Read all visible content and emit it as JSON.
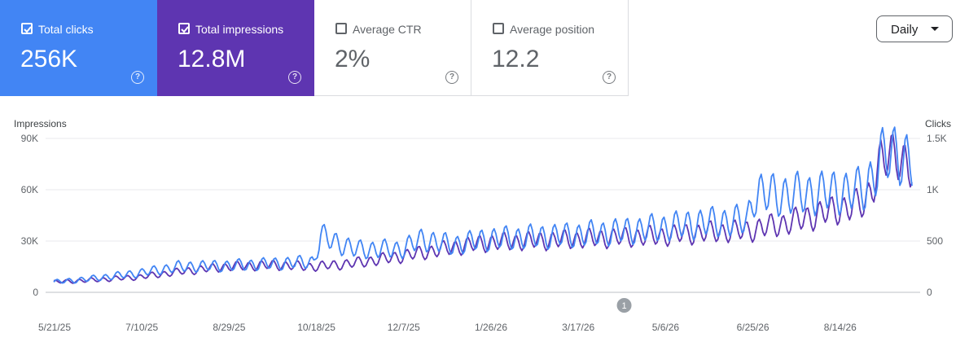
{
  "metrics": [
    {
      "label": "Total clicks",
      "value": "256K",
      "checked": true,
      "theme": "active-blue"
    },
    {
      "label": "Total impressions",
      "value": "12.8M",
      "checked": true,
      "theme": "active-purple"
    },
    {
      "label": "Average CTR",
      "value": "2%",
      "checked": false,
      "theme": ""
    },
    {
      "label": "Average position",
      "value": "12.2",
      "checked": false,
      "theme": ""
    }
  ],
  "help_glyph": "?",
  "period_select": {
    "value": "Daily"
  },
  "colors": {
    "clicks": "#4285f4",
    "impressions": "#5e35b1",
    "grid": "#e8eaed"
  },
  "chart_data": {
    "type": "line",
    "ylabel_left": "Impressions",
    "ylabel_right": "Clicks",
    "y_left_ticks": [
      "90K",
      "60K",
      "30K",
      "0"
    ],
    "y_right_ticks": [
      "1.5K",
      "1K",
      "500",
      "0"
    ],
    "ylim_left": [
      0,
      90000
    ],
    "ylim_right": [
      0,
      1500
    ],
    "x_ticks": [
      "5/21/25",
      "7/10/25",
      "8/29/25",
      "10/18/25",
      "12/7/25",
      "1/26/26",
      "3/17/26",
      "5/6/26",
      "6/25/26",
      "8/14/26"
    ],
    "x_range": [
      "5/21/25",
      "9/28/26"
    ],
    "annotation": {
      "label": "1",
      "date": "4/15/26"
    },
    "grid": true,
    "series": [
      {
        "name": "Clicks",
        "axis": "right",
        "color": "#4285f4",
        "x": [
          "5/21/25",
          "6/10/25",
          "7/10/25",
          "8/1/25",
          "8/29/25",
          "9/25/25",
          "10/18/25",
          "10/22/25",
          "11/10/25",
          "12/7/25",
          "12/20/25",
          "1/5/26",
          "1/26/26",
          "2/20/26",
          "3/17/26",
          "4/10/26",
          "5/6/26",
          "6/1/26",
          "6/25/26",
          "6/29/26",
          "7/20/26",
          "8/14/26",
          "9/1/26",
          "9/10/26",
          "9/20/26",
          "9/28/26"
        ],
        "values": [
          100,
          130,
          190,
          250,
          260,
          280,
          300,
          550,
          420,
          420,
          520,
          460,
          520,
          540,
          560,
          590,
          630,
          680,
          700,
          960,
          950,
          980,
          1000,
          1300,
          1380,
          1240
        ]
      },
      {
        "name": "Impressions",
        "axis": "left",
        "color": "#5e35b1",
        "x": [
          "5/21/25",
          "6/10/25",
          "7/10/25",
          "8/1/25",
          "8/29/25",
          "9/25/25",
          "10/18/25",
          "11/10/25",
          "12/7/25",
          "1/5/26",
          "1/26/26",
          "2/20/26",
          "3/17/26",
          "4/10/26",
          "5/6/26",
          "6/1/26",
          "6/25/26",
          "7/20/26",
          "8/14/26",
          "9/1/26",
          "9/10/26",
          "9/20/26",
          "9/28/26"
        ],
        "values": [
          6000,
          7000,
          9000,
          12000,
          15000,
          16000,
          15000,
          17000,
          21000,
          26000,
          29000,
          30000,
          31000,
          32000,
          33000,
          35000,
          36000,
          41000,
          48000,
          52000,
          76000,
          82000,
          70000
        ]
      }
    ]
  }
}
